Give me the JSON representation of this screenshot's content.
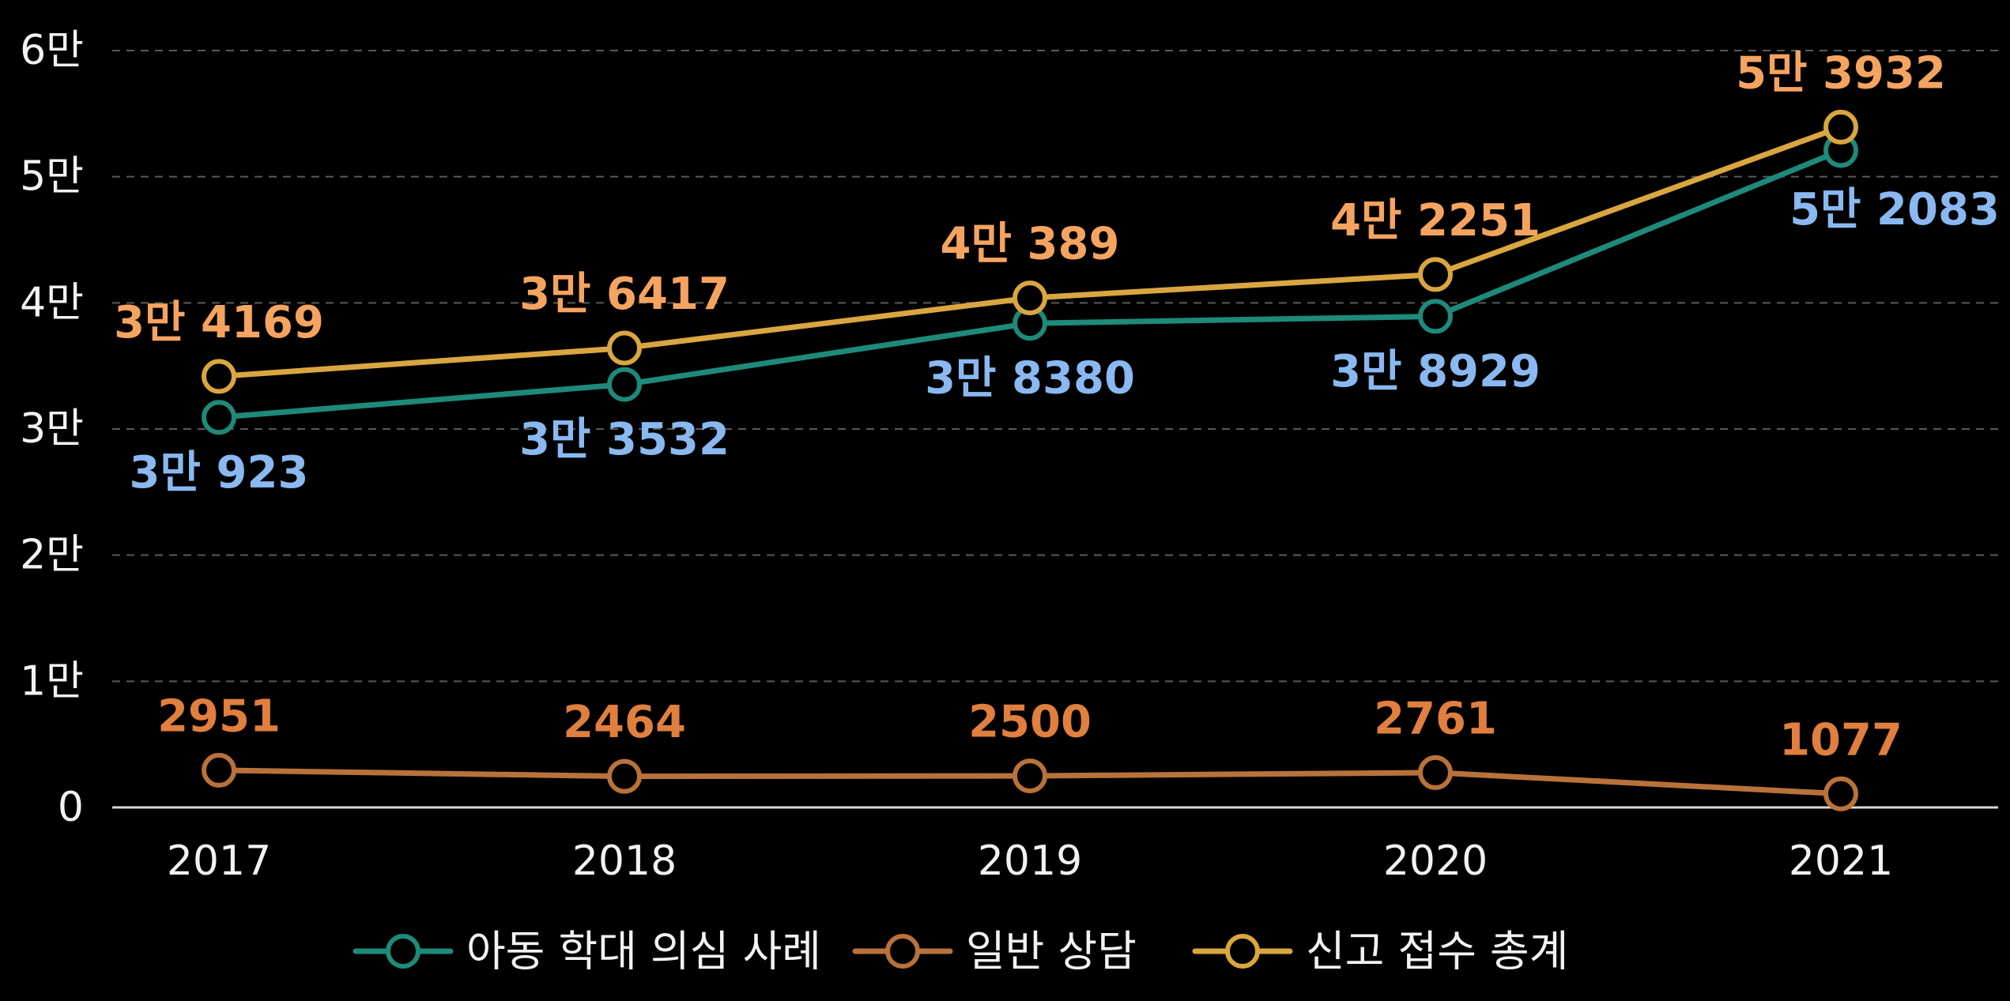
{
  "chart_data": {
    "type": "line",
    "title": "",
    "xlabel": "",
    "ylabel": "",
    "x": [
      "2017",
      "2018",
      "2019",
      "2020",
      "2021"
    ],
    "ylim": [
      0,
      60000
    ],
    "yticks": [
      0,
      10000,
      20000,
      30000,
      40000,
      50000,
      60000
    ],
    "ytick_labels": [
      "0",
      "1만",
      "2만",
      "3만",
      "4만",
      "5만",
      "6만"
    ],
    "grid": "horizontal dashed",
    "legend_position": "bottom",
    "series": [
      {
        "name": "아동 학대 의심 사례",
        "color": "#1e8a7a",
        "label_color": "#8ab8f0",
        "label_position": "below",
        "values": [
          30923,
          33532,
          38380,
          38929,
          52083
        ],
        "labels": [
          "3만 923",
          "3만 3532",
          "3만 8380",
          "3만 8929",
          "5만 2083"
        ]
      },
      {
        "name": "일반 상담",
        "color": "#b8723a",
        "label_color": "#e07f3e",
        "label_position": "above",
        "values": [
          2951,
          2464,
          2500,
          2761,
          1077
        ],
        "labels": [
          "2951",
          "2464",
          "2500",
          "2761",
          "1077"
        ]
      },
      {
        "name": "신고 접수 총계",
        "color": "#d9a640",
        "label_color": "#f5a460",
        "label_position": "above",
        "values": [
          34169,
          36417,
          40389,
          42251,
          53932
        ],
        "labels": [
          "3만 4169",
          "3만 6417",
          "4만 389",
          "4만 2251",
          "5만 3932"
        ]
      }
    ]
  }
}
